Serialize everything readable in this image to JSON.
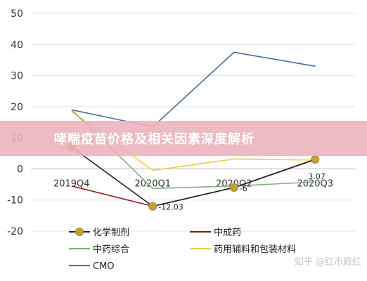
{
  "banner": {
    "title": "哮喘疫苗价格及相关因素深度解析"
  },
  "watermark": "知乎 @红市殿红",
  "chart_data": {
    "type": "line",
    "title": "",
    "xlabel": "",
    "ylabel": "",
    "categories": [
      "2019Q4",
      "2020Q1",
      "2020Q2",
      "2020Q3"
    ],
    "ylim": [
      -20,
      50
    ],
    "yticks": [
      "-20",
      "-10",
      "0",
      "10",
      "20",
      "30",
      "40",
      "50"
    ],
    "grid": "horizontal",
    "legend_position": "bottom",
    "series": [
      {
        "name": "化学制剂",
        "values": [
          7.02,
          -12.03,
          -6,
          3.07
        ],
        "color": "#222222",
        "marker": "circle",
        "marker_color": "#c9a227"
      },
      {
        "name": "中成药",
        "values": [
          -5.5,
          -12,
          -6,
          3
        ],
        "color": "#8b1a1a",
        "marker": "none"
      },
      {
        "name": "中药综合",
        "values": [
          19,
          -6.3,
          -5.5,
          -4.2
        ],
        "color": "#7fb27f",
        "marker": "none"
      },
      {
        "name": "药用辅料和包装材料",
        "values": [
          18.5,
          -0.5,
          3.2,
          2.8
        ],
        "color": "#e8cf4a",
        "marker": "none"
      },
      {
        "name": "CMO",
        "values": [
          19,
          13.5,
          37.5,
          33
        ],
        "color": "#4a6f96",
        "marker": "none"
      }
    ],
    "data_labels": [
      {
        "text": "7.02",
        "series": 0,
        "index": 0
      },
      {
        "text": "-12.03",
        "series": 0,
        "index": 1
      },
      {
        "text": "-6",
        "series": 0,
        "index": 2
      },
      {
        "text": "3.07",
        "series": 0,
        "index": 3
      }
    ]
  }
}
